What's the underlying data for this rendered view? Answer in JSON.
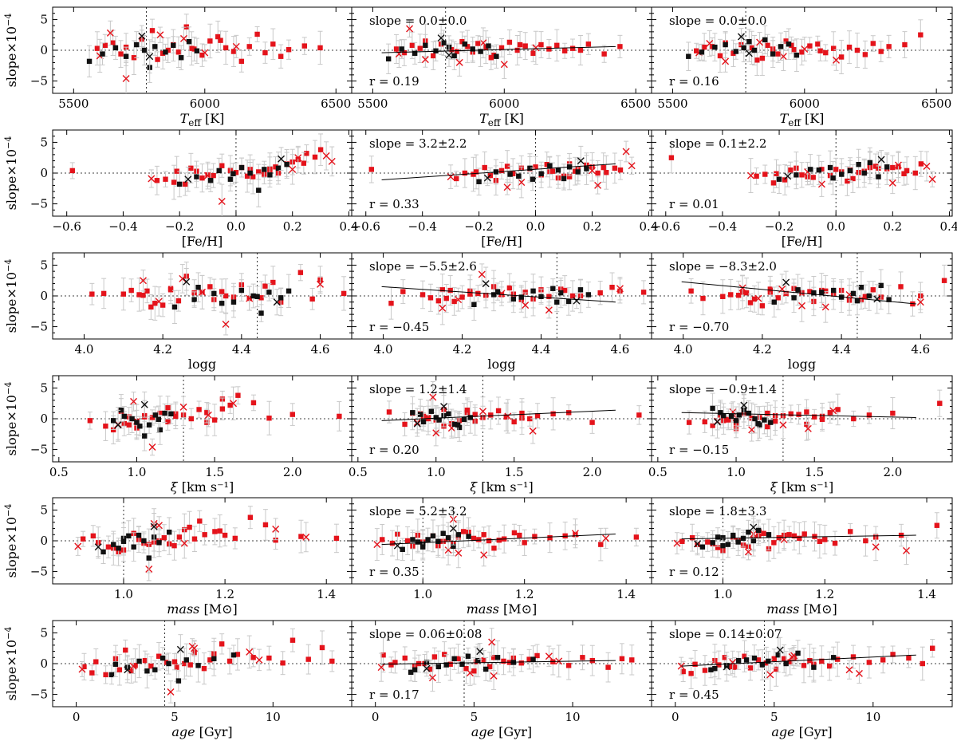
{
  "chart_data": {
    "type": "scatter",
    "ylabel": "slope×10",
    "ylabel_exp": "−4",
    "ylim": [
      -7,
      7
    ],
    "yticks": [
      -5,
      0,
      5
    ],
    "legend_placement": "none",
    "colors": {
      "red": "#e4131b",
      "black": "#111111",
      "errorbar": "#c8c8c8",
      "axis": "#000000",
      "fit": "#000000"
    },
    "columns": 3,
    "rows": [
      {
        "key": "teff",
        "xlabel": "T",
        "xlabel_sub": "eff",
        "xlabel_unit": "[K]",
        "xlabel_italic": true,
        "xlim": [
          5420,
          6560
        ],
        "xticks": [
          5500,
          6000,
          6500
        ],
        "xtick_labels": [
          "5500",
          "6000",
          "6500"
        ],
        "ref_x": 5777,
        "panels": [
          {
            "slope_text": "",
            "r_text": ""
          },
          {
            "slope_text": "slope = 0.0±0.0",
            "r_text": "r = 0.19",
            "fit_y": [
              -0.4,
              0.6
            ]
          },
          {
            "slope_text": "slope = 0.0±0.0",
            "r_text": "r = 0.16"
          }
        ]
      },
      {
        "key": "feh",
        "xlabel": "[Fe/H]",
        "xlabel_sub": "",
        "xlabel_unit": "",
        "xlabel_italic": false,
        "xlim": [
          -0.65,
          0.41
        ],
        "xticks": [
          -0.6,
          -0.4,
          -0.2,
          0.0,
          0.2,
          0.4
        ],
        "xtick_labels": [
          "−0.6",
          "−0.4",
          "−0.2",
          "0.0",
          "0.2",
          "0.4"
        ],
        "ref_x": 0.0,
        "panels": [
          {
            "slope_text": "",
            "r_text": ""
          },
          {
            "slope_text": "slope = 3.2±2.2",
            "r_text": "r = 0.33",
            "fit_y": [
              -1.1,
              1.5
            ]
          },
          {
            "slope_text": "slope = 0.1±2.2",
            "r_text": "r = 0.01"
          }
        ]
      },
      {
        "key": "logg",
        "xlabel": "logg",
        "xlabel_sub": "",
        "xlabel_unit": "",
        "xlabel_italic": false,
        "xlim": [
          3.92,
          4.68
        ],
        "xticks": [
          4.0,
          4.2,
          4.4,
          4.6
        ],
        "xtick_labels": [
          "4.0",
          "4.2",
          "4.4",
          "4.6"
        ],
        "ref_x": 4.44,
        "panels": [
          {
            "slope_text": "",
            "r_text": ""
          },
          {
            "slope_text": "slope = −5.5±2.6",
            "r_text": "r = −0.45",
            "fit_y": [
              1.5,
              -1.0
            ]
          },
          {
            "slope_text": "slope = −8.3±2.0",
            "r_text": "r = −0.70",
            "fit_y": [
              2.3,
              -1.3
            ]
          }
        ]
      },
      {
        "key": "xi",
        "xlabel": "ξ",
        "xlabel_sub": "",
        "xlabel_unit": "[km s⁻¹]",
        "xlabel_italic": true,
        "xlim": [
          0.46,
          2.38
        ],
        "xticks": [
          0.5,
          1.0,
          1.5,
          2.0
        ],
        "xtick_labels": [
          "0.5",
          "1.0",
          "1.5",
          "2.0"
        ],
        "ref_x": 1.3,
        "panels": [
          {
            "slope_text": "",
            "r_text": ""
          },
          {
            "slope_text": "slope = 1.2±1.4",
            "r_text": "r = 0.20",
            "fit_y": [
              -0.3,
              1.4
            ]
          },
          {
            "slope_text": "slope = −0.9±1.4",
            "r_text": "r = −0.15",
            "fit_y": [
              1.0,
              0.2
            ]
          }
        ]
      },
      {
        "key": "mass",
        "xlabel": "mass",
        "xlabel_sub": "",
        "xlabel_unit": "[M⊙]",
        "xlabel_italic": true,
        "xlim": [
          0.86,
          1.45
        ],
        "xticks": [
          1.0,
          1.2,
          1.4
        ],
        "xtick_labels": [
          "1.0",
          "1.2",
          "1.4"
        ],
        "ref_x": 1.0,
        "panels": [
          {
            "slope_text": "",
            "r_text": ""
          },
          {
            "slope_text": "slope = 5.2±3.2",
            "r_text": "r = 0.35",
            "fit_y": [
              -0.6,
              1.1
            ]
          },
          {
            "slope_text": "slope = 1.8±3.3",
            "r_text": "r = 0.12",
            "fit_y": [
              0.3,
              0.9
            ]
          }
        ]
      },
      {
        "key": "age",
        "xlabel": "age",
        "xlabel_sub": "",
        "xlabel_unit": "[Gyr]",
        "xlabel_italic": true,
        "xlim": [
          -1.2,
          14.0
        ],
        "xticks": [
          0,
          5,
          10
        ],
        "xtick_labels": [
          "0",
          "5",
          "10"
        ],
        "ref_x": 4.5,
        "panels": [
          {
            "slope_text": "",
            "r_text": ""
          },
          {
            "slope_text": "slope = 0.06±0.08",
            "r_text": "r = 0.17",
            "fit_y": [
              -0.1,
              0.5
            ]
          },
          {
            "slope_text": "slope = 0.14±0.07",
            "r_text": "r = 0.45",
            "fit_y": [
              -0.4,
              1.4
            ]
          }
        ]
      }
    ],
    "stars": [
      {
        "teff": 5590,
        "feh": -0.21,
        "logg": 4.1,
        "xi": 0.95,
        "mass": 0.92,
        "age": 1.0,
        "m": "sq",
        "c": "red",
        "y": [
          0.3,
          0.2,
          -0.1
        ]
      },
      {
        "teff": 5620,
        "feh": -0.16,
        "logg": 4.16,
        "xi": 1.25,
        "mass": 0.94,
        "age": 2.0,
        "m": "sq",
        "c": "red",
        "y": [
          0.8,
          -0.4,
          0.5
        ]
      },
      {
        "teff": 5650,
        "feh": -0.05,
        "logg": 4.22,
        "xi": 0.9,
        "mass": 1.02,
        "age": 4.2,
        "m": "sq",
        "c": "red",
        "y": [
          1.2,
          0.8,
          0.6
        ]
      },
      {
        "teff": 5680,
        "feh": 0.06,
        "logg": 4.33,
        "xi": 1.45,
        "mass": 1.05,
        "age": 5.1,
        "m": "sq",
        "c": "red",
        "y": [
          -0.6,
          0.3,
          -0.9
        ]
      },
      {
        "teff": 5700,
        "feh": 0.12,
        "logg": 4.28,
        "xi": 1.05,
        "mass": 1.08,
        "age": 3.5,
        "m": "sq",
        "c": "red",
        "y": [
          0.5,
          1.5,
          1.2
        ]
      },
      {
        "teff": 5730,
        "feh": -0.28,
        "logg": 4.18,
        "xi": 0.8,
        "mass": 0.98,
        "age": 2.8,
        "m": "sq",
        "c": "red",
        "y": [
          -1.2,
          -0.9,
          -0.5
        ]
      },
      {
        "teff": 5760,
        "feh": 0.2,
        "logg": 4.4,
        "xi": 1.2,
        "mass": 1.12,
        "age": 6.0,
        "m": "sq",
        "c": "red",
        "y": [
          1.8,
          1.0,
          0.9
        ]
      },
      {
        "teff": 5800,
        "feh": 0.25,
        "logg": 4.26,
        "xi": 1.55,
        "mass": 1.15,
        "age": 7.4,
        "m": "sq",
        "c": "red",
        "y": [
          3.2,
          0.1,
          0.4
        ]
      },
      {
        "teff": 5820,
        "feh": -0.22,
        "logg": 4.2,
        "xi": 1.0,
        "mass": 1.0,
        "age": 0.8,
        "m": "sq",
        "c": "red",
        "y": [
          -1.5,
          -0.2,
          -1.6
        ]
      },
      {
        "teff": 5860,
        "feh": 0.15,
        "logg": 4.36,
        "xi": 1.35,
        "mass": 1.07,
        "age": 5.5,
        "m": "sq",
        "c": "red",
        "y": [
          0.0,
          0.6,
          0.8
        ]
      },
      {
        "teff": 5880,
        "feh": 0.02,
        "logg": 4.12,
        "xi": 1.15,
        "mass": 1.2,
        "age": 9.8,
        "m": "sq",
        "c": "red",
        "y": [
          0.9,
          -0.3,
          0.2
        ]
      },
      {
        "teff": 5900,
        "feh": -0.1,
        "logg": 4.45,
        "xi": 0.7,
        "mass": 0.95,
        "age": 3.0,
        "m": "sq",
        "c": "red",
        "y": [
          -0.3,
          1.1,
          -0.6
        ]
      },
      {
        "teff": 5930,
        "feh": 0.3,
        "logg": 4.55,
        "xi": 1.65,
        "mass": 1.25,
        "age": 11.0,
        "m": "sq",
        "c": "red",
        "y": [
          3.8,
          0.5,
          1.5
        ]
      },
      {
        "teff": 5960,
        "feh": 0.08,
        "logg": 4.14,
        "xi": 1.1,
        "mass": 1.03,
        "age": 4.6,
        "m": "sq",
        "c": "red",
        "y": [
          0.2,
          -0.8,
          0.1
        ]
      },
      {
        "teff": 5990,
        "feh": -0.12,
        "logg": 4.24,
        "xi": 0.92,
        "mass": 1.1,
        "age": 6.5,
        "m": "sq",
        "c": "red",
        "y": [
          -0.8,
          0.4,
          -0.3
        ]
      },
      {
        "teff": 6020,
        "feh": 0.18,
        "logg": 4.32,
        "xi": 1.4,
        "mass": 1.18,
        "age": 8.2,
        "m": "sq",
        "c": "red",
        "y": [
          1.5,
          1.3,
          0.7
        ]
      },
      {
        "teff": 6050,
        "feh": 0.22,
        "logg": 4.48,
        "xi": 1.6,
        "mass": 1.13,
        "age": 2.5,
        "m": "sq",
        "c": "red",
        "y": [
          2.2,
          0.0,
          1.0
        ]
      },
      {
        "teff": 6080,
        "feh": -0.02,
        "logg": 4.05,
        "xi": 1.25,
        "mass": 1.22,
        "age": 7.8,
        "m": "sq",
        "c": "red",
        "y": [
          0.4,
          0.7,
          -0.4
        ]
      },
      {
        "teff": 6110,
        "feh": 0.1,
        "logg": 4.38,
        "xi": 1.5,
        "mass": 1.06,
        "age": 5.8,
        "m": "sq",
        "c": "red",
        "y": [
          -0.2,
          -0.5,
          0.3
        ]
      },
      {
        "teff": 6140,
        "feh": -0.18,
        "logg": 4.17,
        "xi": 0.85,
        "mass": 0.99,
        "age": 1.5,
        "m": "sq",
        "c": "red",
        "y": [
          -1.8,
          0.9,
          -1.1
        ]
      },
      {
        "teff": 6170,
        "feh": 0.05,
        "logg": 4.3,
        "xi": 1.3,
        "mass": 1.11,
        "age": 6.8,
        "m": "sq",
        "c": "red",
        "y": [
          0.6,
          0.2,
          0.5
        ]
      },
      {
        "teff": 6200,
        "feh": 0.28,
        "logg": 4.6,
        "xi": 1.75,
        "mass": 1.28,
        "age": 12.5,
        "m": "sq",
        "c": "red",
        "y": [
          2.6,
          0.8,
          0.0
        ]
      },
      {
        "teff": 6230,
        "feh": -0.08,
        "logg": 4.42,
        "xi": 1.0,
        "mass": 1.04,
        "age": 3.8,
        "m": "sq",
        "c": "red",
        "y": [
          -0.4,
          -0.1,
          -0.7
        ]
      },
      {
        "teff": 6260,
        "feh": 0.14,
        "logg": 4.22,
        "xi": 1.45,
        "mass": 1.16,
        "age": 9.0,
        "m": "sq",
        "c": "red",
        "y": [
          1.0,
          0.3,
          1.1
        ]
      },
      {
        "teff": 6290,
        "feh": -0.25,
        "logg": 4.5,
        "xi": 0.95,
        "mass": 0.97,
        "age": 2.2,
        "m": "sq",
        "c": "red",
        "y": [
          -1.0,
          0.0,
          -0.2
        ]
      },
      {
        "teff": 6320,
        "feh": 0.0,
        "logg": 4.15,
        "xi": 1.85,
        "mass": 1.3,
        "age": 10.5,
        "m": "sq",
        "c": "red",
        "y": [
          0.1,
          1.0,
          0.6
        ]
      },
      {
        "teff": 6380,
        "feh": 0.12,
        "logg": 4.35,
        "xi": 2.0,
        "mass": 1.35,
        "age": 11.8,
        "m": "sq",
        "c": "red",
        "y": [
          0.7,
          -0.6,
          0.9
        ]
      },
      {
        "teff": 6440,
        "feh": -0.58,
        "logg": 4.66,
        "xi": 2.3,
        "mass": 1.42,
        "age": 13.0,
        "m": "sq",
        "c": "red",
        "y": [
          0.4,
          0.6,
          2.5
        ]
      },
      {
        "teff": 5840,
        "feh": 0.04,
        "logg": 4.58,
        "xi": 1.2,
        "mass": 1.09,
        "age": 0.4,
        "m": "sq",
        "c": "red",
        "y": [
          -0.5,
          1.4,
          -1.3
        ]
      },
      {
        "teff": 5950,
        "feh": -0.14,
        "logg": 4.02,
        "xi": 1.05,
        "mass": 1.14,
        "age": 5.0,
        "m": "sq",
        "c": "red",
        "y": [
          0.3,
          -1.2,
          0.8
        ]
      },
      {
        "teff": 6060,
        "feh": 0.24,
        "logg": 4.46,
        "xi": 1.55,
        "mass": 1.19,
        "age": 7.0,
        "m": "sq",
        "c": "red",
        "y": [
          1.6,
          0.9,
          -0.1
        ]
      },
      {
        "teff": 5600,
        "feh": -0.3,
        "logg": 4.19,
        "xi": 0.88,
        "mass": 0.91,
        "age": 0.3,
        "m": "x",
        "c": "red",
        "y": [
          -0.9,
          -0.6,
          -0.4
        ]
      },
      {
        "teff": 5640,
        "feh": 0.32,
        "logg": 4.25,
        "xi": 0.98,
        "mass": 1.06,
        "age": 5.9,
        "m": "x",
        "c": "red",
        "y": [
          2.8,
          3.5,
          1.1
        ]
      },
      {
        "teff": 5700,
        "feh": -0.05,
        "logg": 4.36,
        "xi": 1.1,
        "mass": 1.05,
        "age": 4.8,
        "m": "x",
        "c": "red",
        "y": [
          -4.6,
          -1.5,
          -1.8
        ]
      },
      {
        "teff": 5830,
        "feh": 0.22,
        "logg": 4.15,
        "xi": 1.62,
        "mass": 1.07,
        "age": 6.0,
        "m": "x",
        "c": "red",
        "y": [
          2.5,
          -2.0,
          1.3
        ]
      },
      {
        "teff": 5920,
        "feh": 0.34,
        "logg": 4.6,
        "xi": 1.3,
        "mass": 1.3,
        "age": 8.8,
        "m": "x",
        "c": "red",
        "y": [
          1.9,
          1.2,
          -1.0
        ]
      },
      {
        "teff": 6000,
        "feh": -0.1,
        "logg": 4.42,
        "xi": 1.0,
        "mass": 1.12,
        "age": 2.9,
        "m": "x",
        "c": "red",
        "y": [
          -0.4,
          -2.3,
          0.2
        ]
      },
      {
        "teff": 6120,
        "feh": 0.2,
        "logg": 4.3,
        "xi": 1.46,
        "mass": 1.36,
        "age": 9.3,
        "m": "x",
        "c": "red",
        "y": [
          0.6,
          0.4,
          -1.6
        ]
      },
      {
        "teff": 5560,
        "feh": -0.2,
        "logg": 4.23,
        "xi": 1.15,
        "mass": 0.96,
        "age": 1.8,
        "m": "sq",
        "c": "black",
        "y": [
          -1.8,
          -1.4,
          -1.0
        ]
      },
      {
        "teff": 5610,
        "feh": -0.14,
        "logg": 4.28,
        "xi": 1.0,
        "mass": 0.98,
        "age": 2.6,
        "m": "sq",
        "c": "black",
        "y": [
          -0.6,
          0.2,
          -0.3
        ]
      },
      {
        "teff": 5660,
        "feh": -0.06,
        "logg": 4.33,
        "xi": 0.92,
        "mass": 1.0,
        "age": 3.2,
        "m": "sq",
        "c": "black",
        "y": [
          0.4,
          -0.5,
          0.5
        ]
      },
      {
        "teff": 5700,
        "feh": -0.02,
        "logg": 4.38,
        "xi": 1.08,
        "mass": 1.02,
        "age": 4.0,
        "m": "sq",
        "c": "black",
        "y": [
          -1.0,
          0.8,
          0.9
        ]
      },
      {
        "teff": 5740,
        "feh": 0.02,
        "logg": 4.4,
        "xi": 1.18,
        "mass": 1.03,
        "age": 4.4,
        "m": "sq",
        "c": "black",
        "y": [
          0.9,
          -0.1,
          -0.2
        ]
      },
      {
        "teff": 5770,
        "feh": 0.05,
        "logg": 4.43,
        "xi": 0.97,
        "mass": 1.04,
        "age": 4.7,
        "m": "sq",
        "c": "black",
        "y": [
          0.0,
          1.2,
          0.4
        ]
      },
      {
        "teff": 5790,
        "feh": 0.08,
        "logg": 4.45,
        "xi": 1.05,
        "mass": 1.05,
        "age": 5.2,
        "m": "sq",
        "c": "black",
        "y": [
          -2.8,
          0.5,
          1.4
        ]
      },
      {
        "teff": 5810,
        "feh": 0.1,
        "logg": 4.47,
        "xi": 1.12,
        "mass": 1.06,
        "age": 5.6,
        "m": "sq",
        "c": "black",
        "y": [
          0.6,
          -0.9,
          0.0
        ]
      },
      {
        "teff": 5850,
        "feh": 0.12,
        "logg": 4.5,
        "xi": 0.85,
        "mass": 1.07,
        "age": 6.2,
        "m": "sq",
        "c": "black",
        "y": [
          -0.3,
          1.0,
          1.7
        ]
      },
      {
        "teff": 5880,
        "feh": 0.15,
        "logg": 4.52,
        "xi": 1.22,
        "mass": 1.01,
        "age": 7.0,
        "m": "sq",
        "c": "black",
        "y": [
          0.8,
          0.2,
          -0.6
        ]
      },
      {
        "teff": 5910,
        "feh": -0.09,
        "logg": 4.35,
        "xi": 1.02,
        "mass": 0.99,
        "age": 3.6,
        "m": "sq",
        "c": "black",
        "y": [
          -1.2,
          -0.2,
          0.6
        ]
      },
      {
        "teff": 5940,
        "feh": 0.18,
        "logg": 4.29,
        "xi": 0.9,
        "mass": 1.09,
        "age": 8.0,
        "m": "sq",
        "c": "black",
        "y": [
          1.4,
          0.7,
          1.0
        ]
      },
      {
        "teff": 5970,
        "feh": -0.01,
        "logg": 4.44,
        "xi": 1.14,
        "mass": 1.0,
        "age": 2.0,
        "m": "sq",
        "c": "black",
        "y": [
          -0.1,
          -1.0,
          -0.8
        ]
      },
      {
        "teff": 5760,
        "feh": 0.16,
        "logg": 4.26,
        "xi": 1.05,
        "mass": 1.06,
        "age": 5.3,
        "m": "x",
        "c": "black",
        "y": [
          2.3,
          2.0,
          2.2
        ]
      },
      {
        "teff": 5790,
        "feh": -0.17,
        "logg": 4.49,
        "xi": 0.88,
        "mass": 0.95,
        "age": 2.6,
        "m": "x",
        "c": "black",
        "y": [
          -1.0,
          -0.8,
          -0.5
        ]
      }
    ]
  }
}
